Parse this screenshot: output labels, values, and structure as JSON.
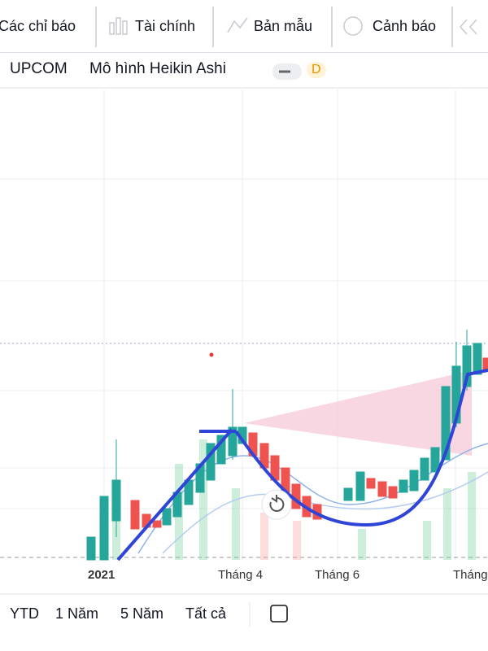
{
  "toolbar": {
    "items": [
      "Các chỉ báo",
      "Tài chính",
      "Bản mẫu",
      "Cảnh báo"
    ]
  },
  "header": {
    "exchange": "UPCOM",
    "chart_style": "Mô hình Heikin Ashi",
    "interval": "D"
  },
  "x_axis": {
    "labels": [
      "2021",
      "Tháng 4",
      "Tháng 6",
      "Tháng"
    ]
  },
  "ranges": {
    "items": [
      "YTD",
      "1 Năm",
      "5 Năm",
      "Tất cả"
    ]
  }
}
